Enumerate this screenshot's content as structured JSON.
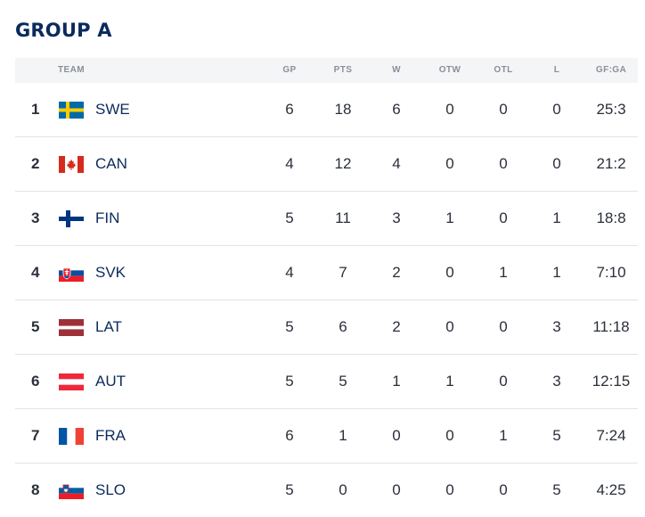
{
  "group_title": "GROUP A",
  "headers": {
    "team": "TEAM",
    "gp": "GP",
    "pts": "PTS",
    "w": "W",
    "otw": "OTW",
    "otl": "OTL",
    "l": "L",
    "gfga": "GF:GA"
  },
  "rows": [
    {
      "rank": "1",
      "team": "SWE",
      "flag": "sweden-flag-icon",
      "gp": "6",
      "pts": "18",
      "w": "6",
      "otw": "0",
      "otl": "0",
      "l": "0",
      "gfga": "25:3"
    },
    {
      "rank": "2",
      "team": "CAN",
      "flag": "canada-flag-icon",
      "gp": "4",
      "pts": "12",
      "w": "4",
      "otw": "0",
      "otl": "0",
      "l": "0",
      "gfga": "21:2"
    },
    {
      "rank": "3",
      "team": "FIN",
      "flag": "finland-flag-icon",
      "gp": "5",
      "pts": "11",
      "w": "3",
      "otw": "1",
      "otl": "0",
      "l": "1",
      "gfga": "18:8"
    },
    {
      "rank": "4",
      "team": "SVK",
      "flag": "slovakia-flag-icon",
      "gp": "4",
      "pts": "7",
      "w": "2",
      "otw": "0",
      "otl": "1",
      "l": "1",
      "gfga": "7:10"
    },
    {
      "rank": "5",
      "team": "LAT",
      "flag": "latvia-flag-icon",
      "gp": "5",
      "pts": "6",
      "w": "2",
      "otw": "0",
      "otl": "0",
      "l": "3",
      "gfga": "11:18"
    },
    {
      "rank": "6",
      "team": "AUT",
      "flag": "austria-flag-icon",
      "gp": "5",
      "pts": "5",
      "w": "1",
      "otw": "1",
      "otl": "0",
      "l": "3",
      "gfga": "12:15"
    },
    {
      "rank": "7",
      "team": "FRA",
      "flag": "france-flag-icon",
      "gp": "6",
      "pts": "1",
      "w": "0",
      "otw": "0",
      "otl": "1",
      "l": "5",
      "gfga": "7:24"
    },
    {
      "rank": "8",
      "team": "SLO",
      "flag": "slovenia-flag-icon",
      "gp": "5",
      "pts": "0",
      "w": "0",
      "otw": "0",
      "otl": "0",
      "l": "5",
      "gfga": "4:25"
    }
  ],
  "colors": {
    "title": "#0b2a5c",
    "header_bg": "#f4f5f7",
    "divider": "#e1e3e7"
  }
}
